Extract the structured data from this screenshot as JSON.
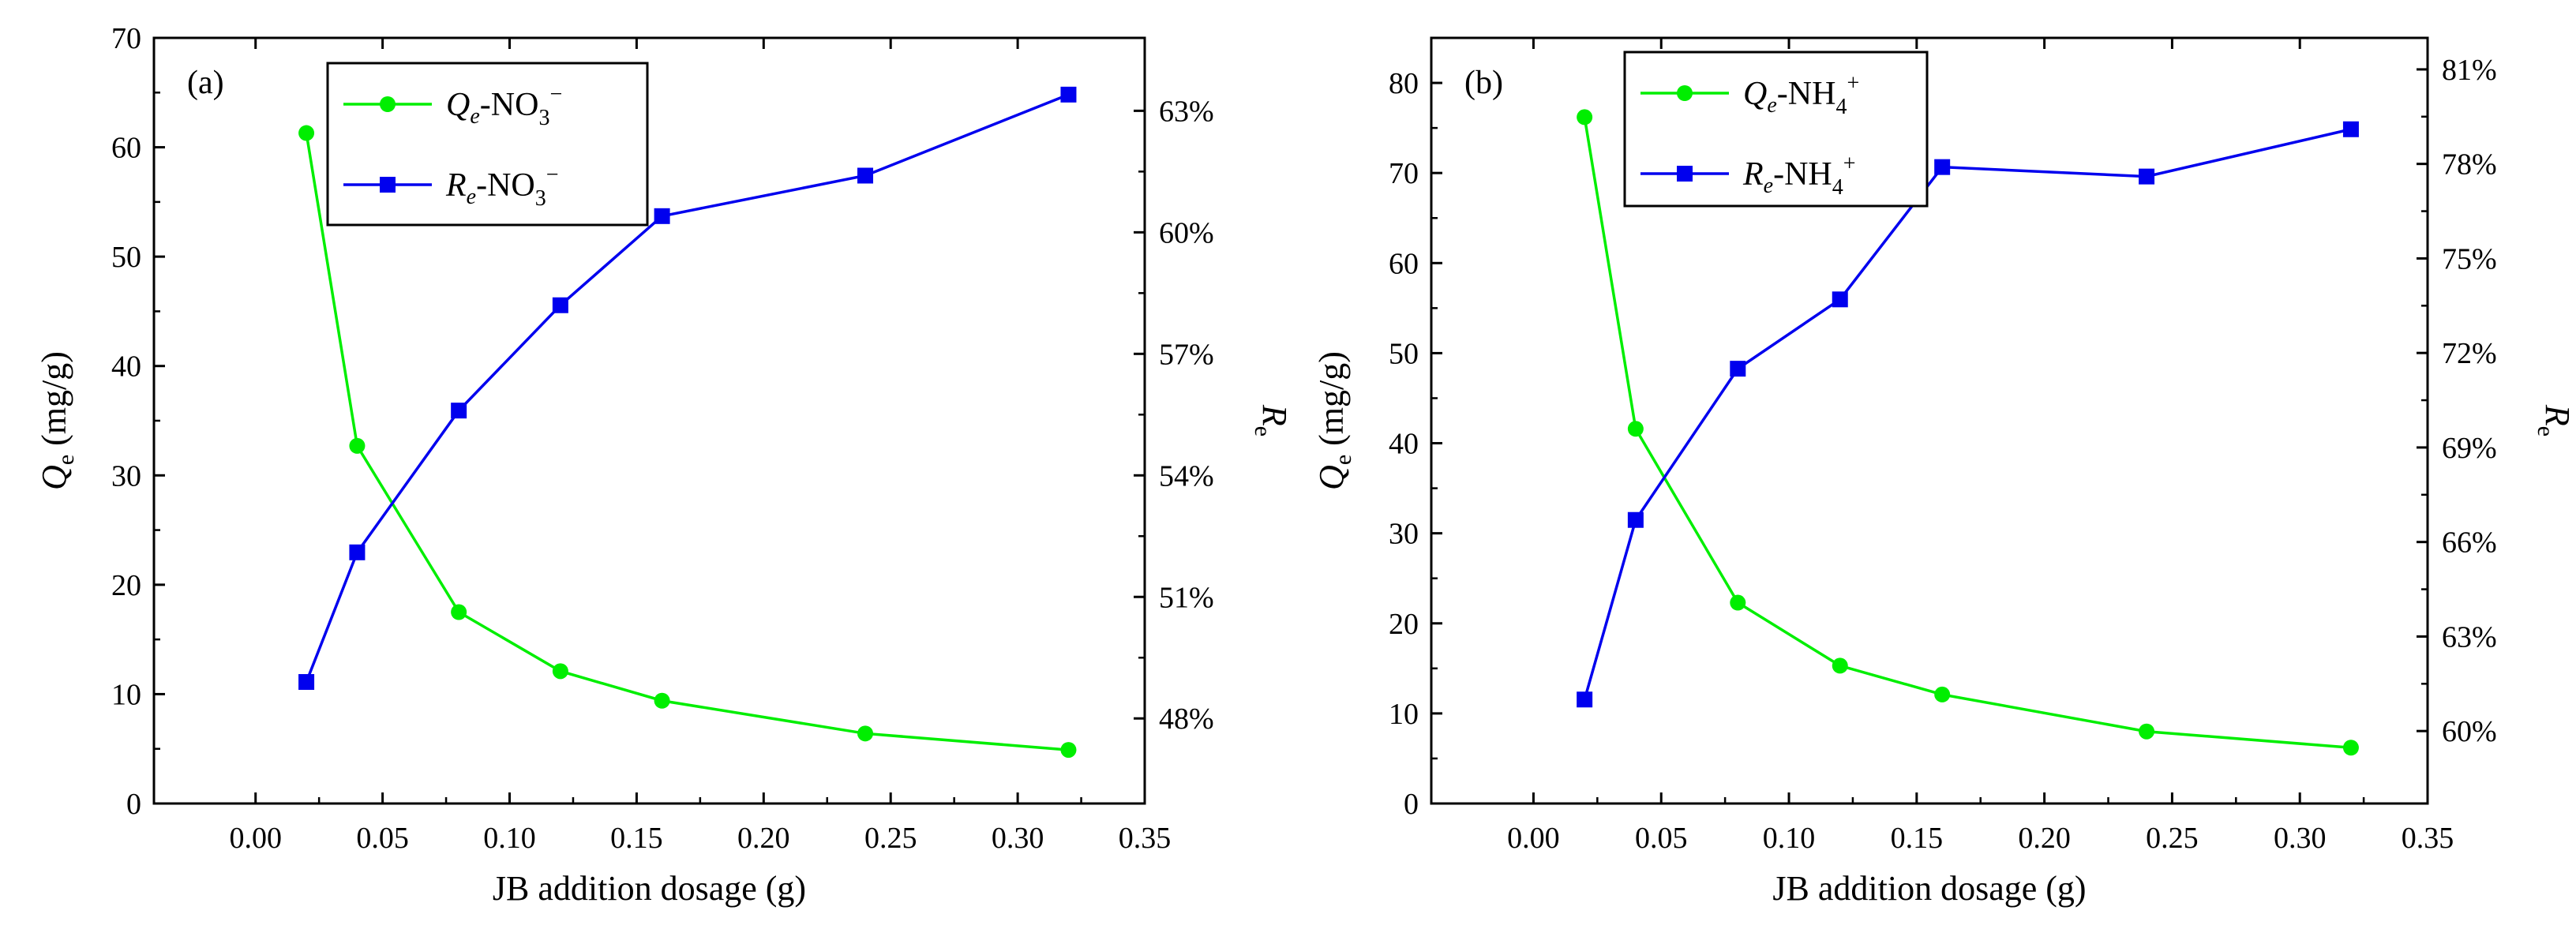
{
  "chart_data": [
    {
      "type": "line",
      "panel_label": "(a)",
      "xlabel": "JB addition dosage (g)",
      "ylabel_left": {
        "symbol": "Q",
        "sub": "e",
        "rest": " (mg/g)"
      },
      "ylabel_right": {
        "symbol": "R",
        "sub": "e"
      },
      "xlim": [
        -0.04,
        0.35
      ],
      "ylim_left": [
        0,
        70
      ],
      "ylim_right": [
        45.9,
        64.8
      ],
      "x_ticks": [
        0.0,
        0.05,
        0.1,
        0.15,
        0.2,
        0.25,
        0.3,
        0.35
      ],
      "x_tick_labels": [
        "0.00",
        "0.05",
        "0.10",
        "0.15",
        "0.20",
        "0.25",
        "0.30",
        "0.35"
      ],
      "y_left_ticks": [
        0,
        10,
        20,
        30,
        40,
        50,
        60,
        70
      ],
      "y_left_tick_labels": [
        "0",
        "10",
        "20",
        "30",
        "40",
        "50",
        "60",
        "70"
      ],
      "y_right_ticks": [
        48,
        51,
        54,
        57,
        60,
        63
      ],
      "y_right_tick_labels": [
        "48%",
        "51%",
        "54%",
        "57%",
        "60%",
        "63%"
      ],
      "x": [
        0.02,
        0.04,
        0.08,
        0.12,
        0.16,
        0.24,
        0.32
      ],
      "series": [
        {
          "name": "Qe-NO3-",
          "legend": {
            "symbol": "Q",
            "sub": "e",
            "text": "-NO",
            "sub2": "3",
            "sup": "−"
          },
          "axis": "left",
          "color": "#00ee00",
          "marker": "circle",
          "values": [
            61.3,
            32.7,
            17.5,
            12.1,
            9.4,
            6.4,
            4.9
          ]
        },
        {
          "name": "Re-NO3-",
          "legend": {
            "symbol": "R",
            "sub": "e",
            "text": "-NO",
            "sub2": "3",
            "sup": "−"
          },
          "axis": "right",
          "color": "#0000ee",
          "marker": "square",
          "values": [
            48.9,
            52.1,
            55.6,
            58.2,
            60.4,
            61.4,
            63.4
          ]
        }
      ]
    },
    {
      "type": "line",
      "panel_label": "(b)",
      "xlabel": "JB addition dosage (g)",
      "ylabel_left": {
        "symbol": "Q",
        "sub": "e",
        "rest": " (mg/g)"
      },
      "ylabel_right": {
        "symbol": "R",
        "sub": "e"
      },
      "xlim": [
        -0.04,
        0.35
      ],
      "ylim_left": [
        0,
        85
      ],
      "ylim_right": [
        57.7,
        82.0
      ],
      "x_ticks": [
        0.0,
        0.05,
        0.1,
        0.15,
        0.2,
        0.25,
        0.3,
        0.35
      ],
      "x_tick_labels": [
        "0.00",
        "0.05",
        "0.10",
        "0.15",
        "0.20",
        "0.25",
        "0.30",
        "0.35"
      ],
      "y_left_ticks": [
        0,
        10,
        20,
        30,
        40,
        50,
        60,
        70,
        80
      ],
      "y_left_tick_labels": [
        "0",
        "10",
        "20",
        "30",
        "40",
        "50",
        "60",
        "70",
        "80"
      ],
      "y_right_ticks": [
        60,
        63,
        66,
        69,
        72,
        75,
        78,
        81
      ],
      "y_right_tick_labels": [
        "60%",
        "63%",
        "66%",
        "69%",
        "72%",
        "75%",
        "78%",
        "81%"
      ],
      "x": [
        0.02,
        0.04,
        0.08,
        0.12,
        0.16,
        0.24,
        0.32
      ],
      "series": [
        {
          "name": "Qe-NH4+",
          "legend": {
            "symbol": "Q",
            "sub": "e",
            "text": "-NH",
            "sub2": "4",
            "sup": "+"
          },
          "axis": "left",
          "color": "#00ee00",
          "marker": "circle",
          "values": [
            76.2,
            41.6,
            22.3,
            15.3,
            12.1,
            8.0,
            6.2
          ]
        },
        {
          "name": "Re-NH4+",
          "legend": {
            "symbol": "R",
            "sub": "e",
            "text": "-NH",
            "sub2": "4",
            "sup": "+"
          },
          "axis": "right",
          "color": "#0000ee",
          "marker": "square",
          "values": [
            61.0,
            66.7,
            71.5,
            73.7,
            77.9,
            77.6,
            79.1
          ]
        }
      ]
    }
  ]
}
